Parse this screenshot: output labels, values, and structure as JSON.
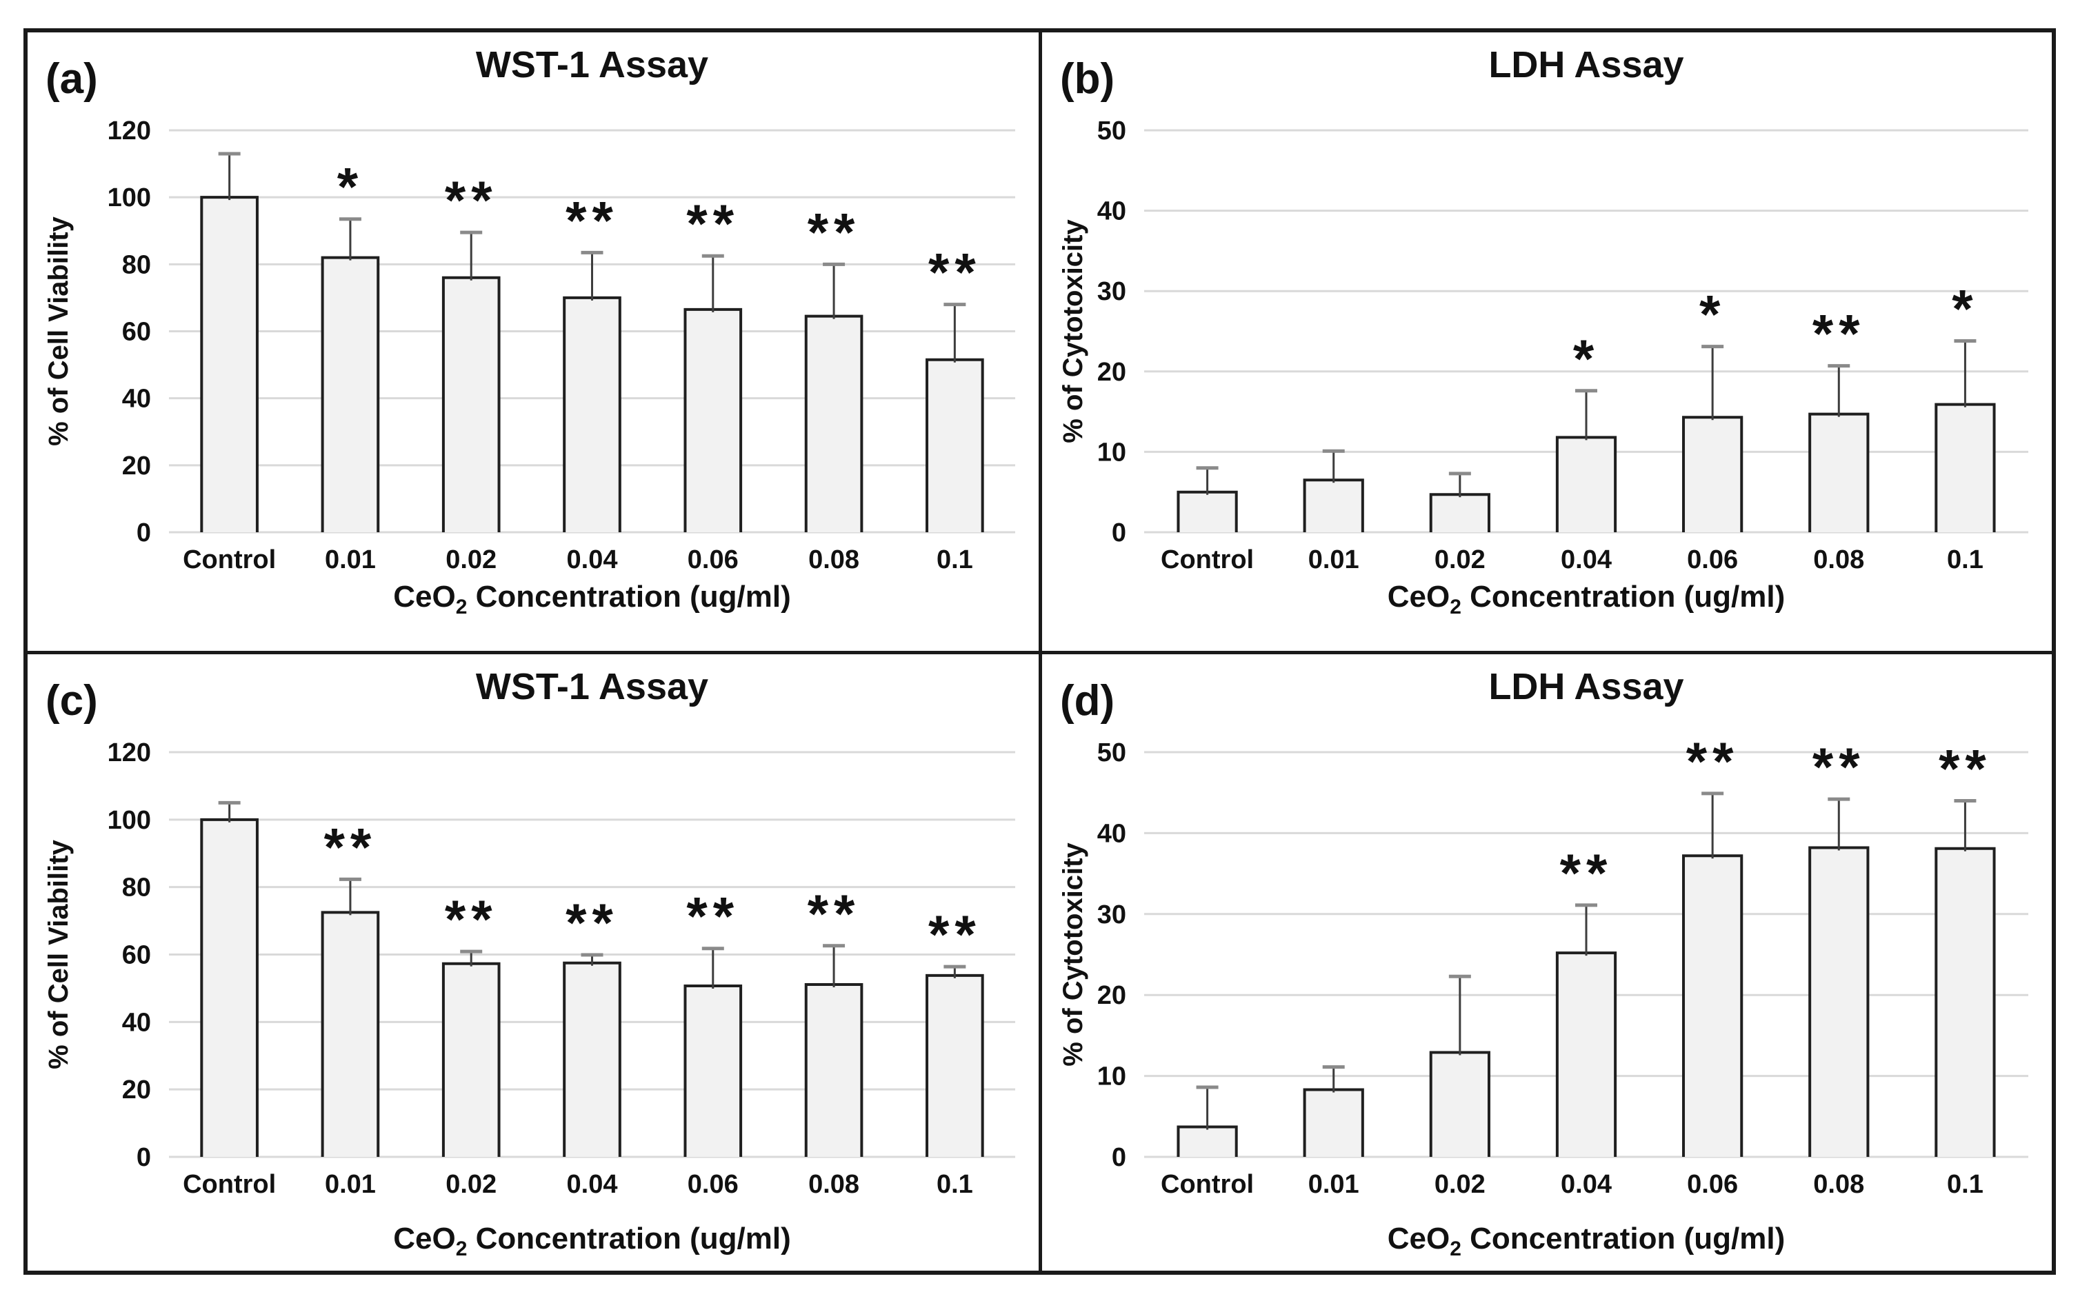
{
  "figure": {
    "description": "Four-panel bar chart figure of CeO2 nanoparticle cytotoxicity assays",
    "x_axis_title": {
      "prefix": "CeO",
      "sub": "2",
      "suffix": " Concentration (ug/ml)"
    },
    "x_categories": [
      "Control",
      "0.01",
      "0.02",
      "0.04",
      "0.06",
      "0.08",
      "0.1"
    ],
    "colors": {
      "background": "#ffffff",
      "frame_border": "#1a1a1a",
      "bar_fill": "#f2f2f2",
      "bar_border": "#1f1f1f",
      "gridline": "#d9d9d9",
      "error_stem": "#3d3d3d",
      "error_cap": "#8a8a8a",
      "text": "#111111"
    }
  },
  "chart_data": [
    {
      "type": "bar",
      "panel_label": "(a)",
      "title": "WST-1 Assay",
      "ylabel": "% of Cell Viability",
      "xlabel": "CeO2 Concentration (ug/ml)",
      "ylim": [
        0,
        120
      ],
      "ytick_step": 20,
      "grid": true,
      "legend": "none",
      "categories": [
        "Control",
        "0.01",
        "0.02",
        "0.04",
        "0.06",
        "0.08",
        "0.1"
      ],
      "values": [
        100,
        82,
        76,
        70,
        66.5,
        64.5,
        51.5
      ],
      "errors_upper": [
        13,
        11.5,
        13.5,
        13.5,
        16,
        15.5,
        16.5
      ],
      "significance": [
        "",
        "*",
        "**",
        "**",
        "**",
        "**",
        "**"
      ]
    },
    {
      "type": "bar",
      "panel_label": "(b)",
      "title": "LDH Assay",
      "ylabel": "% of Cytotoxicity",
      "xlabel": "CeO2 Concentration (ug/ml)",
      "ylim": [
        0,
        50
      ],
      "ytick_step": 10,
      "grid": true,
      "legend": "none",
      "categories": [
        "Control",
        "0.01",
        "0.02",
        "0.04",
        "0.06",
        "0.08",
        "0.1"
      ],
      "values": [
        5,
        6.5,
        4.7,
        11.8,
        14.3,
        14.7,
        15.9
      ],
      "errors_upper": [
        3,
        3.6,
        2.6,
        5.8,
        8.8,
        6,
        7.9
      ],
      "significance": [
        "",
        "",
        "",
        "*",
        "*",
        "**",
        "*"
      ]
    },
    {
      "type": "bar",
      "panel_label": "(c)",
      "title": "WST-1 Assay",
      "ylabel": "% of Cell Viability",
      "xlabel": "CeO2 Concentration (ug/ml)",
      "ylim": [
        0,
        120
      ],
      "ytick_step": 20,
      "grid": true,
      "legend": "none",
      "categories": [
        "Control",
        "0.01",
        "0.02",
        "0.04",
        "0.06",
        "0.08",
        "0.1"
      ],
      "values": [
        100,
        72.5,
        57.3,
        57.5,
        50.7,
        51.1,
        53.8
      ],
      "errors_upper": [
        5,
        9.8,
        3.6,
        2.4,
        11.1,
        11.5,
        2.6
      ],
      "significance": [
        "",
        "**",
        "**",
        "**",
        "**",
        "**",
        "**"
      ]
    },
    {
      "type": "bar",
      "panel_label": "(d)",
      "title": "LDH Assay",
      "ylabel": "% of Cytotoxicity",
      "xlabel": "CeO2 Concentration (ug/ml)",
      "ylim": [
        0,
        50
      ],
      "ytick_step": 10,
      "grid": true,
      "legend": "none",
      "categories": [
        "Control",
        "0.01",
        "0.02",
        "0.04",
        "0.06",
        "0.08",
        "0.1"
      ],
      "values": [
        3.7,
        8.3,
        12.9,
        25.2,
        37.2,
        38.2,
        38.1
      ],
      "errors_upper": [
        4.9,
        2.8,
        9.4,
        5.9,
        7.7,
        6,
        5.9
      ],
      "significance": [
        "",
        "",
        "",
        "**",
        "**",
        "**",
        "**"
      ]
    }
  ]
}
